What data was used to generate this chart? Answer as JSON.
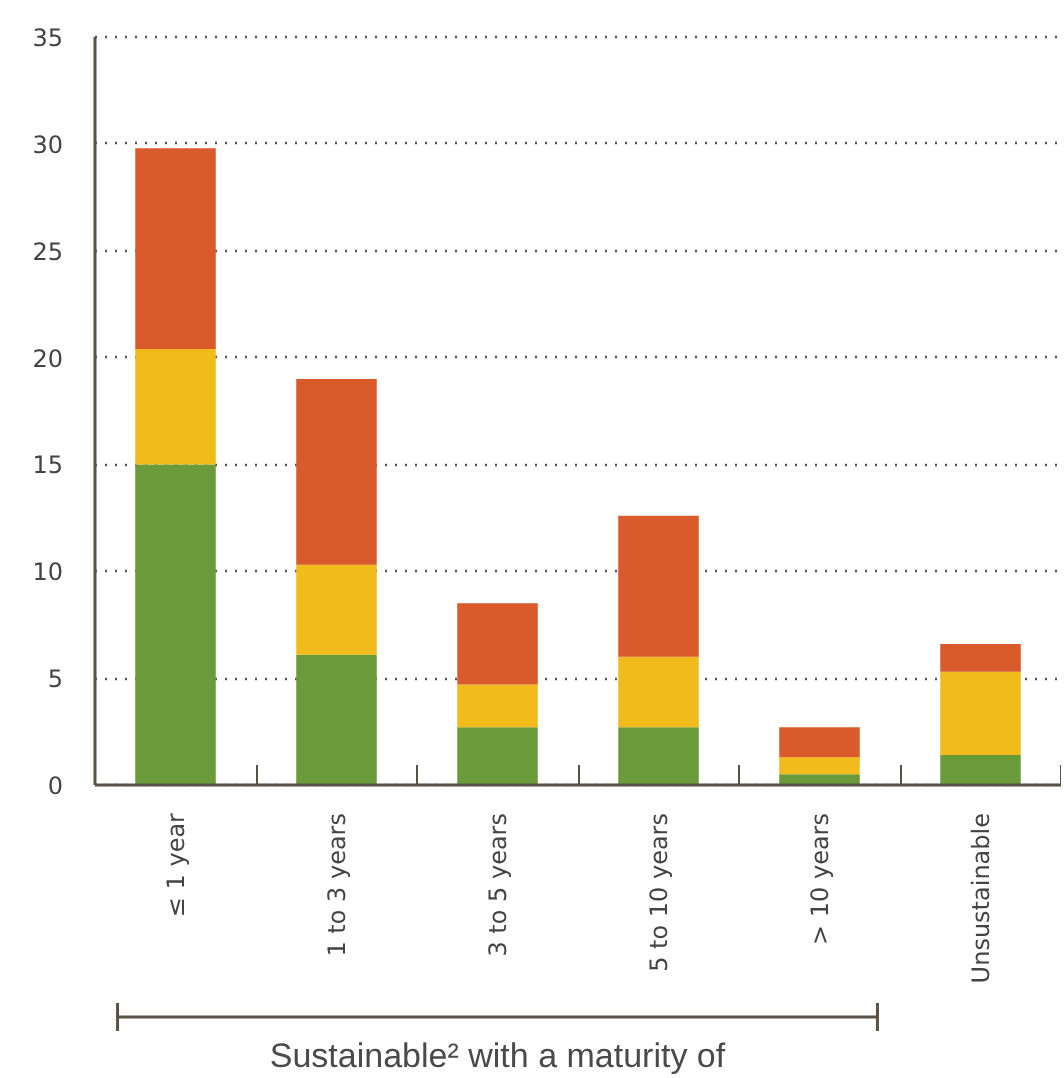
{
  "chart_data": {
    "type": "bar",
    "stacked": true,
    "categories": [
      "≤ 1 year",
      "1 to 3 years",
      "3 to 5 years",
      "5 to 10 years",
      "> 10 years",
      "Unsustainable"
    ],
    "series": [
      {
        "color": "#6a9a3a",
        "values": [
          15.0,
          6.1,
          2.7,
          2.7,
          0.5,
          1.4
        ]
      },
      {
        "color": "#f1bb1c",
        "values": [
          5.4,
          4.2,
          2.0,
          3.3,
          0.8,
          3.9
        ]
      },
      {
        "color": "#d95a2b",
        "values": [
          9.4,
          8.7,
          3.8,
          6.6,
          1.4,
          1.3
        ]
      }
    ],
    "ylim": [
      0,
      35
    ],
    "yticks": [
      0,
      5,
      10,
      15,
      20,
      25,
      30,
      35
    ],
    "grid": "y",
    "annotations": [
      "Sustainable² with a maturity of"
    ]
  }
}
